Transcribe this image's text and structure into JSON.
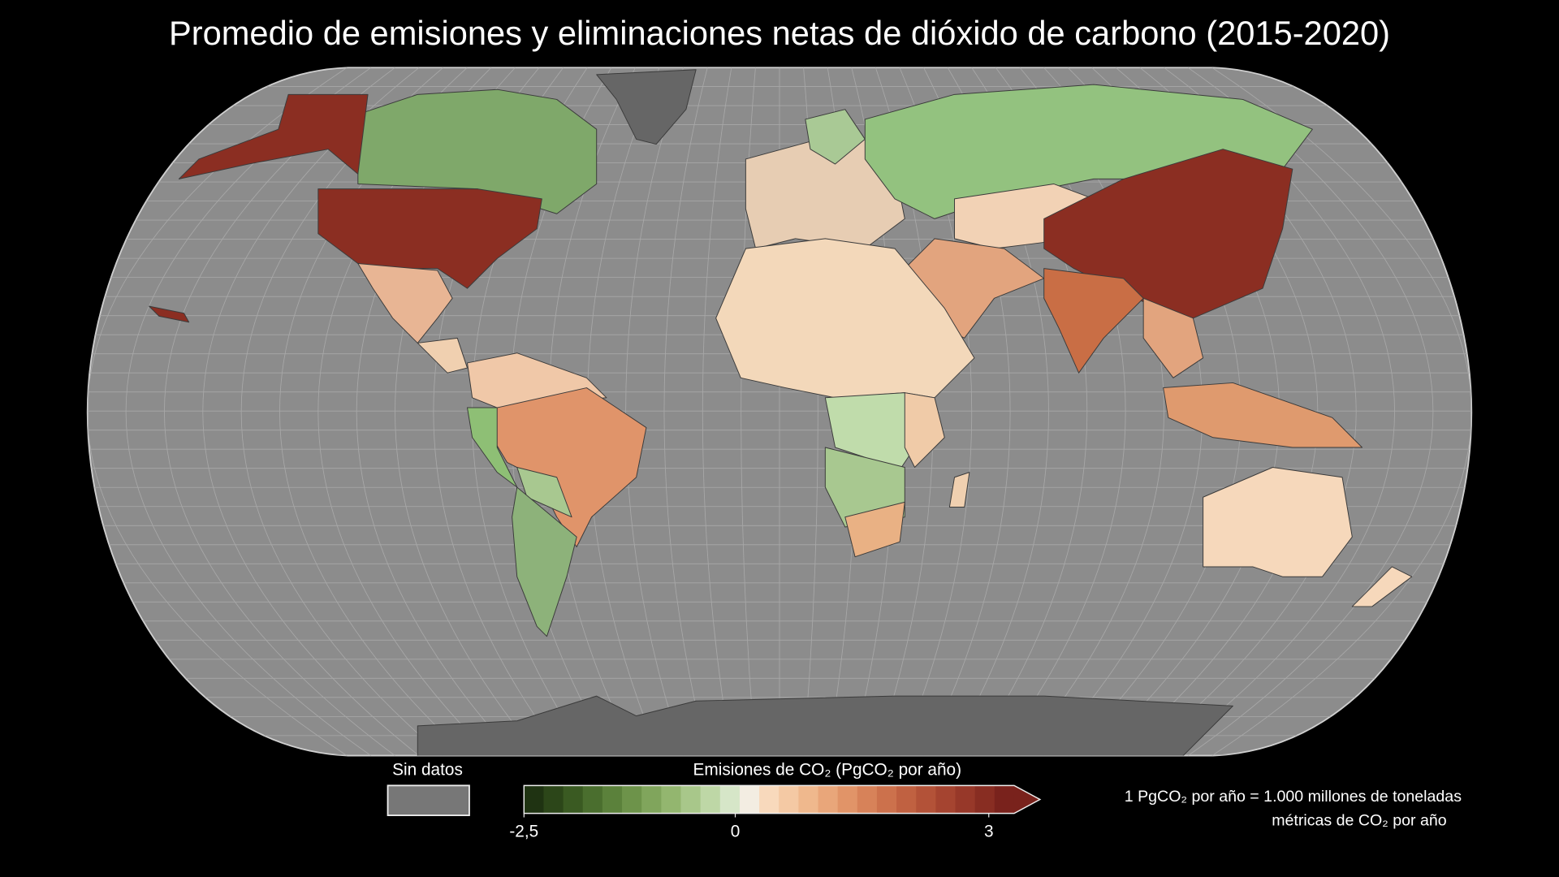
{
  "title": "Promedio de emisiones y eliminaciones netas de dióxido de carbono (2015-2020)",
  "legend": {
    "no_data_label": "Sin datos",
    "title": "Emisiones de CO₂ (PgCO₂ por año)",
    "range": [
      -2.5,
      3.3
    ],
    "ticks": [
      {
        "value": -2.5,
        "label": "-2,5"
      },
      0,
      3
    ],
    "colors": [
      "#1f3312",
      "#2c4619",
      "#3a5a22",
      "#4a6e2e",
      "#5b813b",
      "#6d934a",
      "#80a55c",
      "#93b66f",
      "#a8c78a",
      "#bed7a6",
      "#d6e6c8",
      "#f3ede2",
      "#f8d9bc",
      "#f4c9a4",
      "#efb88d",
      "#e9a67a",
      "#e19468",
      "#d78259",
      "#cc714c",
      "#c06141",
      "#b35238",
      "#a54430",
      "#973829",
      "#882d22",
      "#79221c"
    ]
  },
  "note": [
    "1 PgCO₂ por año = 1.000 millones de toneladas",
    "métricas de CO₂ por año"
  ]
}
